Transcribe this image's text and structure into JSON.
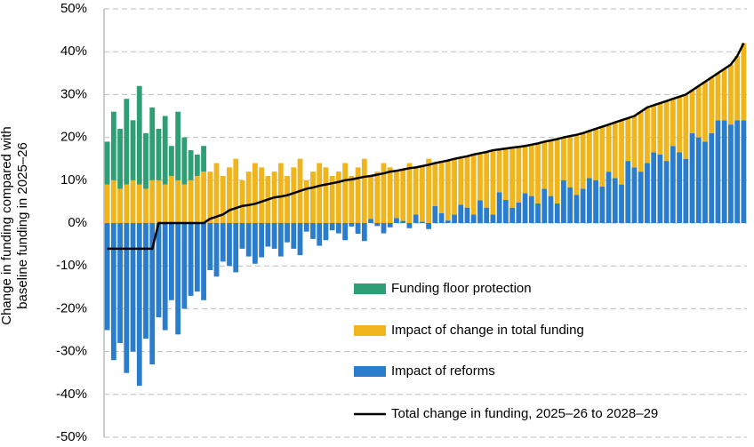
{
  "chart_data": {
    "type": "bar",
    "stacked": true,
    "ylabel": "Change in funding compared with baseline funding in 2025–26",
    "categories": [
      null,
      null,
      null,
      null,
      null,
      null,
      null,
      null,
      null,
      null,
      null,
      null,
      null,
      null,
      null,
      null,
      null,
      null,
      null,
      null,
      null,
      null,
      null,
      null,
      null,
      null,
      null,
      null,
      null,
      null,
      null,
      null,
      null,
      null,
      null,
      null,
      null,
      null,
      null,
      null,
      null,
      null,
      null,
      null,
      null,
      null,
      null,
      null,
      null,
      null,
      null,
      null,
      null,
      null,
      null,
      null,
      null,
      null,
      null,
      null,
      null,
      null,
      null,
      null,
      null,
      null,
      null,
      null,
      null,
      null,
      null,
      null,
      null,
      null,
      null,
      null,
      null,
      null,
      null,
      null,
      null,
      null,
      null,
      null,
      null,
      null,
      null,
      null,
      null,
      null,
      null,
      null,
      null,
      null,
      null,
      null,
      null,
      null,
      null,
      null
    ],
    "ylim": [
      -50,
      50
    ],
    "yticks": [
      {
        "value": -50,
        "label": "-50%"
      },
      {
        "value": -40,
        "label": "-40%"
      },
      {
        "value": -30,
        "label": "-30%"
      },
      {
        "value": -20,
        "label": "-20%"
      },
      {
        "value": -10,
        "label": "-10%"
      },
      {
        "value": 0,
        "label": "0%"
      },
      {
        "value": 10,
        "label": "10%"
      },
      {
        "value": 20,
        "label": "20%"
      },
      {
        "value": 30,
        "label": "30%"
      },
      {
        "value": 40,
        "label": "40%"
      },
      {
        "value": 50,
        "label": "50%"
      }
    ],
    "grid": true,
    "legend": "lower right",
    "series": [
      {
        "name": "Impact of reforms",
        "color": "#2a7ccc",
        "values": [
          -25,
          -32,
          -28,
          -35,
          -30,
          -38,
          -27,
          -33,
          -22,
          -25,
          -18,
          -26,
          -20,
          -17,
          -16,
          -18,
          -11,
          -12.5,
          -9,
          -10,
          -11.5,
          -6,
          -7.8,
          -9.5,
          -8,
          -5.5,
          -6,
          -7.8,
          -4.5,
          -6,
          -7.5,
          -2,
          -3.7,
          -5.3,
          -4,
          -1.7,
          -2.4,
          -4,
          -0.8,
          -2.5,
          -4.2,
          1,
          -0.7,
          -2.4,
          -1,
          1.2,
          0.5,
          -1.2,
          2,
          0.3,
          -1.4,
          4,
          2.3,
          0.6,
          2,
          4.3,
          3.6,
          2,
          5.3,
          3.6,
          2,
          7.2,
          5.4,
          3.6,
          4.8,
          7,
          6.3,
          4.6,
          8,
          6.3,
          4.6,
          10,
          8.3,
          6.6,
          8,
          10.5,
          10,
          8.5,
          12,
          10.5,
          9,
          14.5,
          13,
          12,
          14,
          16.5,
          16,
          14.5,
          18,
          16.5,
          15,
          21,
          20,
          19,
          21,
          24,
          24,
          23,
          24,
          24
        ]
      },
      {
        "name": "Impact of change in total funding",
        "color": "#f0b41c",
        "values": [
          9,
          10,
          8,
          9,
          10,
          9,
          8,
          10,
          10,
          9,
          11,
          10,
          9,
          10,
          11,
          12,
          12,
          14,
          11,
          13,
          15,
          10,
          12,
          14,
          13,
          11,
          12,
          14,
          11,
          13,
          15,
          10,
          12,
          14,
          13,
          11,
          12,
          14,
          11,
          13,
          15,
          10,
          12,
          14,
          13,
          11,
          12,
          14,
          11,
          13,
          15,
          10,
          12,
          14,
          13,
          11,
          12,
          14,
          11,
          13,
          15,
          10,
          12,
          14,
          13,
          11,
          12,
          14,
          11,
          13,
          15,
          10,
          12,
          14,
          13,
          11,
          12,
          14,
          11,
          13,
          15,
          10,
          12,
          14,
          13,
          11,
          12,
          14,
          11,
          13,
          15,
          10,
          12,
          14,
          13,
          11,
          12,
          14,
          15,
          18
        ]
      },
      {
        "name": "Funding floor protection",
        "color": "#2e9e74",
        "values": [
          10,
          16,
          14,
          20,
          14,
          23,
          13,
          17,
          12,
          16,
          7,
          16,
          11,
          7,
          5,
          6,
          0,
          0,
          0,
          0,
          0,
          0,
          0,
          0,
          0,
          0,
          0,
          0,
          0,
          0,
          0,
          0,
          0,
          0,
          0,
          0,
          0,
          0,
          0,
          0,
          0,
          0,
          0,
          0,
          0,
          0,
          0,
          0,
          0,
          0,
          0,
          0,
          0,
          0,
          0,
          0,
          0,
          0,
          0,
          0,
          0,
          0,
          0,
          0,
          0,
          0,
          0,
          0,
          0,
          0,
          0,
          0,
          0,
          0,
          0,
          0,
          0,
          0,
          0,
          0,
          0,
          0,
          0,
          0,
          0,
          0,
          0,
          0,
          0,
          0,
          0,
          0,
          0,
          0,
          0,
          0,
          0,
          0,
          0,
          0
        ]
      },
      {
        "name": "Total change in funding, 2025–26 to 2028–29",
        "color": "#000000",
        "type": "line",
        "values": [
          -6,
          -6,
          -6,
          -6,
          -6,
          -6,
          -6,
          -6,
          0,
          0,
          0,
          0,
          0,
          0,
          0,
          0,
          1,
          1.5,
          2,
          3,
          3.5,
          4,
          4.2,
          4.5,
          5,
          5.5,
          6,
          6.2,
          6.5,
          7,
          7.5,
          8,
          8.3,
          8.7,
          9,
          9.3,
          9.6,
          10,
          10.2,
          10.5,
          10.8,
          11,
          11.3,
          11.6,
          12,
          12.2,
          12.5,
          12.8,
          13,
          13.3,
          13.6,
          14,
          14.3,
          14.6,
          15,
          15.3,
          15.6,
          16,
          16.3,
          16.6,
          17,
          17.2,
          17.4,
          17.6,
          17.8,
          18,
          18.3,
          18.6,
          19,
          19.3,
          19.6,
          20,
          20.3,
          20.6,
          21,
          21.5,
          22,
          22.5,
          23,
          23.5,
          24,
          24.5,
          25,
          26,
          27,
          27.5,
          28,
          28.5,
          29,
          29.5,
          30,
          31,
          32,
          33,
          34,
          35,
          36,
          37,
          39,
          42
        ]
      }
    ]
  }
}
